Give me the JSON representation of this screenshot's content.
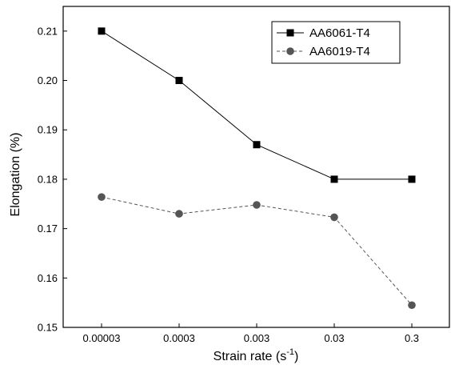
{
  "chart_data": {
    "type": "line",
    "title": "",
    "xlabel": {
      "base": "Strain rate (s",
      "sup": "-1",
      "close": ")"
    },
    "ylabel": "Elongation (%)",
    "categories": [
      "0.00003",
      "0.0003",
      "0.003",
      "0.03",
      "0.3"
    ],
    "ylim": [
      0.15,
      0.215
    ],
    "yticks": [
      "0.15",
      "0.16",
      "0.17",
      "0.18",
      "0.19",
      "0.20",
      "0.21"
    ],
    "grid": false,
    "legend_position": "top-right",
    "series": [
      {
        "name": "AA6061-T4",
        "values": [
          0.21,
          0.2,
          0.187,
          0.18,
          0.18
        ],
        "color": "#000000",
        "marker": "square",
        "line": "solid"
      },
      {
        "name": "AA6019-T4",
        "values": [
          0.1764,
          0.173,
          0.1748,
          0.1723,
          0.1545
        ],
        "color": "#555555",
        "marker": "circle",
        "line": "dashed"
      }
    ]
  }
}
